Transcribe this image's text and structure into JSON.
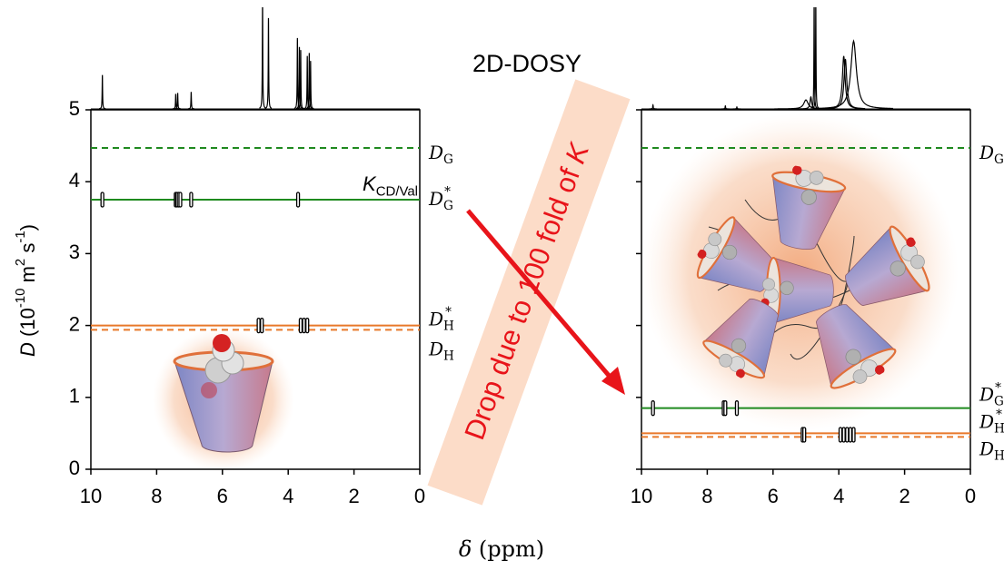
{
  "title": "2D-DOSY",
  "xlabel": [
    {
      "text": "δ",
      "italic": true
    },
    {
      "text": " (ppm)"
    }
  ],
  "ylabel": [
    {
      "text": "D",
      "italic": true
    },
    {
      "text": " (10"
    },
    {
      "text": "-10",
      "sup": true
    },
    {
      "text": " m"
    },
    {
      "text": "2",
      "sup": true
    },
    {
      "text": " s"
    },
    {
      "text": "-1",
      "sup": true
    },
    {
      "text": ")"
    }
  ],
  "annotation": [
    {
      "text": "Drop due to 100 fold of "
    },
    {
      "text": "K",
      "italic": true
    }
  ],
  "chart_data": [
    {
      "type": "dosy",
      "xlim": [
        10,
        0
      ],
      "xticks": [
        10,
        8,
        6,
        4,
        2,
        0
      ],
      "ylim": [
        0,
        5
      ],
      "yticks": [
        0,
        1,
        2,
        3,
        4,
        5
      ],
      "ytick_labels": true,
      "levels": [
        {
          "label": [
            {
              "text": "D",
              "italic": true
            },
            {
              "text": "G",
              "sub": true
            }
          ],
          "value": 4.47,
          "color": "#1f8a1f",
          "dashed": true
        },
        {
          "label": [
            {
              "text": "D",
              "italic": true
            },
            {
              "text": "G",
              "sub": true
            },
            {
              "text": "*",
              "sup": true
            }
          ],
          "value": 3.75,
          "color": "#1f8a1f",
          "dashed": false,
          "note": [
            {
              "text": "K",
              "italic": true
            },
            {
              "text": "CD/Val",
              "sub": true
            }
          ]
        },
        {
          "label": [
            {
              "text": "D",
              "italic": true
            },
            {
              "text": "H",
              "sub": true
            },
            {
              "text": "*",
              "sup": true
            }
          ],
          "value": 2.0,
          "color": "#e8782a",
          "dashed": false
        },
        {
          "label": [
            {
              "text": "D",
              "italic": true
            },
            {
              "text": "H",
              "sub": true
            }
          ],
          "value": 1.94,
          "color": "#e8782a",
          "dashed": true
        }
      ],
      "cross_peaks": {
        "x": [
          9.65,
          7.42,
          7.38,
          7.33,
          7.28,
          6.95,
          3.7,
          4.9,
          4.8,
          3.62,
          3.52,
          3.42
        ],
        "y": [
          3.75,
          3.75,
          3.75,
          3.75,
          3.75,
          3.75,
          3.75,
          2.0,
          2.0,
          2.0,
          2.0,
          2.0
        ]
      },
      "spectrum": {
        "ppm": [
          9.65,
          7.42,
          7.36,
          6.95,
          4.78,
          4.6,
          3.72,
          3.66,
          3.62,
          3.42,
          3.36,
          3.32
        ],
        "intensity": [
          34,
          15,
          16,
          17,
          110,
          91,
          71,
          62,
          59,
          53,
          56,
          48
        ],
        "width": [
          0.008,
          0.008,
          0.008,
          0.008,
          0.008,
          0.008,
          0.008,
          0.008,
          0.008,
          0.008,
          0.008,
          0.008
        ],
        "color": "#000000"
      }
    },
    {
      "type": "dosy",
      "xlim": [
        10,
        0
      ],
      "xticks": [
        10,
        8,
        6,
        4,
        2,
        0
      ],
      "ylim": [
        0,
        5
      ],
      "yticks": [
        0,
        1,
        2,
        3,
        4,
        5
      ],
      "ytick_labels": false,
      "levels": [
        {
          "label": [
            {
              "text": "D",
              "italic": true
            },
            {
              "text": "G",
              "sub": true
            }
          ],
          "value": 4.47,
          "color": "#1f8a1f",
          "dashed": true
        },
        {
          "label": [
            {
              "text": "D",
              "italic": true
            },
            {
              "text": "G",
              "sub": true
            },
            {
              "text": "*",
              "sup": true
            }
          ],
          "value": 0.85,
          "color": "#1f8a1f",
          "dashed": false
        },
        {
          "label": [
            {
              "text": "D",
              "italic": true
            },
            {
              "text": "H",
              "sub": true
            },
            {
              "text": "*",
              "sup": true
            }
          ],
          "value": 0.5,
          "color": "#e8782a",
          "dashed": false
        },
        {
          "label": [
            {
              "text": "D",
              "italic": true
            },
            {
              "text": "H",
              "sub": true
            }
          ],
          "value": 0.45,
          "color": "#e8782a",
          "dashed": true
        }
      ],
      "cross_peaks": {
        "x": [
          9.65,
          7.5,
          7.45,
          7.1,
          5.1,
          5.05,
          3.95,
          3.85,
          3.75,
          3.65,
          3.55
        ],
        "y": [
          0.85,
          0.85,
          0.85,
          0.85,
          0.48,
          0.48,
          0.48,
          0.48,
          0.48,
          0.48,
          0.48
        ]
      },
      "spectrum": {
        "ppm": [
          9.65,
          7.45,
          7.1,
          5.0,
          4.85,
          4.75,
          4.7,
          3.85,
          3.8,
          3.55
        ],
        "intensity": [
          4,
          3,
          2,
          9,
          12,
          110,
          110,
          53,
          50,
          68
        ],
        "width": [
          0.01,
          0.01,
          0.01,
          0.08,
          0.03,
          0.008,
          0.008,
          0.05,
          0.05,
          0.1
        ],
        "color": "#000000"
      }
    }
  ]
}
